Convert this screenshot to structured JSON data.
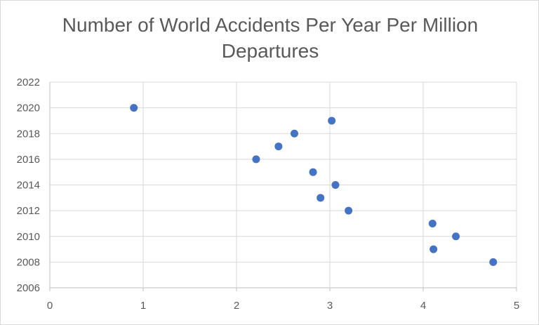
{
  "chart_data": {
    "type": "scatter",
    "title": "Number of World Accidents Per Year Per Million Departures",
    "xlabel": "",
    "ylabel": "",
    "xlim": [
      0,
      5
    ],
    "ylim": [
      2006,
      2022
    ],
    "xticks": [
      "0",
      "1",
      "2",
      "3",
      "4",
      "5"
    ],
    "yticks": [
      "2006",
      "2008",
      "2010",
      "2012",
      "2014",
      "2016",
      "2018",
      "2020",
      "2022"
    ],
    "grid": true,
    "legend": "none",
    "marker_color": "#4472c4",
    "points": [
      {
        "x": 0.9,
        "y": 2020
      },
      {
        "x": 3.02,
        "y": 2019
      },
      {
        "x": 2.62,
        "y": 2018
      },
      {
        "x": 2.45,
        "y": 2017
      },
      {
        "x": 2.21,
        "y": 2016
      },
      {
        "x": 2.82,
        "y": 2015
      },
      {
        "x": 3.06,
        "y": 2014
      },
      {
        "x": 2.9,
        "y": 2013
      },
      {
        "x": 3.2,
        "y": 2012
      },
      {
        "x": 4.1,
        "y": 2011
      },
      {
        "x": 4.35,
        "y": 2010
      },
      {
        "x": 4.11,
        "y": 2009
      },
      {
        "x": 4.75,
        "y": 2008
      }
    ]
  }
}
